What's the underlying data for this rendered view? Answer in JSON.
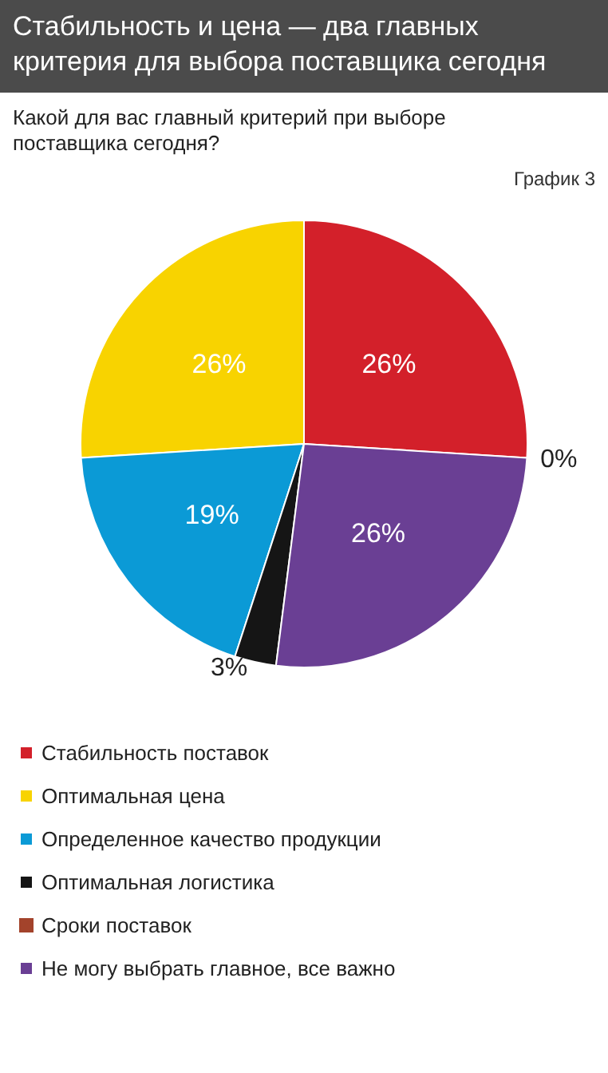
{
  "chart_data": {
    "type": "pie",
    "title": "Стабильность и цена — два главных критерия для выбора поставщика сегодня",
    "subtitle": "Какой для вас главный критерий при выборе поставщика сегодня?",
    "annotations": [
      "График 3"
    ],
    "categories": [
      "Стабильность поставок",
      "Оптимальная цена",
      "Определенное качество продукции",
      "Оптимальная логистика",
      "Сроки поставок",
      "Не могу выбрать главное, все важно"
    ],
    "values": [
      26,
      26,
      19,
      3,
      0,
      26
    ],
    "value_labels": [
      "26%",
      "26%",
      "19%",
      "3%",
      "0%",
      "26%"
    ],
    "colors": [
      "#d3202a",
      "#f8d300",
      "#0b9ad6",
      "#151515",
      "#a3432b",
      "#6a3f94"
    ],
    "legend": "bottom"
  }
}
